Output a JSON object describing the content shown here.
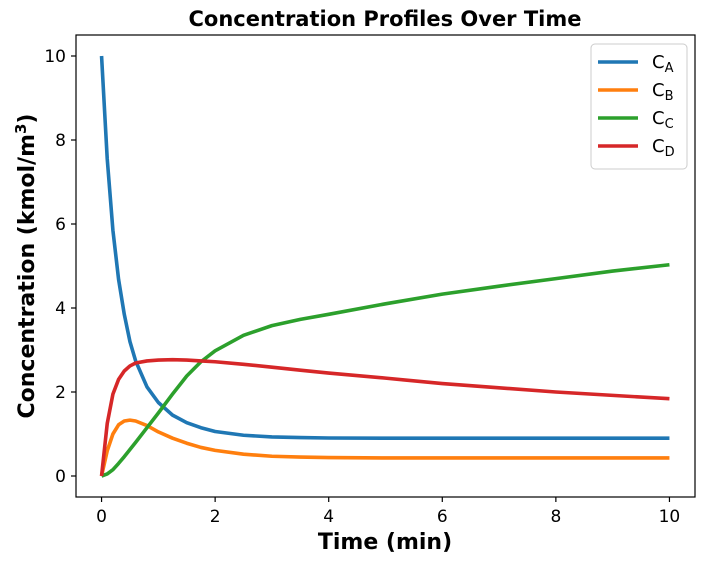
{
  "chart_data": {
    "type": "line",
    "title": "Concentration Profiles Over Time",
    "xlabel": "Time (min)",
    "ylabel": "Concentration (kmol/m3)",
    "ylabel_main": "Concentration (kmol/m",
    "ylabel_sup": "3",
    "ylabel_end": ")",
    "xlim": [
      -0.45,
      10.45
    ],
    "ylim": [
      -0.5,
      10.5
    ],
    "xticks": [
      0,
      2,
      4,
      6,
      8,
      10
    ],
    "yticks": [
      0,
      2,
      4,
      6,
      8,
      10
    ],
    "grid": false,
    "legend_position": "top-right",
    "series": [
      {
        "name": "CA",
        "name_main": "C",
        "name_sub": "A",
        "color": "#1f77b4",
        "x": [
          0,
          0.1,
          0.2,
          0.3,
          0.4,
          0.5,
          0.6,
          0.8,
          1.0,
          1.25,
          1.5,
          1.75,
          2.0,
          2.5,
          3.0,
          3.5,
          4.0,
          5.0,
          6.0,
          7.0,
          8.0,
          9.0,
          10.0
        ],
        "y": [
          10.0,
          7.55,
          5.85,
          4.68,
          3.85,
          3.2,
          2.74,
          2.12,
          1.75,
          1.45,
          1.27,
          1.15,
          1.06,
          0.97,
          0.93,
          0.915,
          0.905,
          0.9,
          0.9,
          0.9,
          0.9,
          0.9,
          0.9
        ]
      },
      {
        "name": "CB",
        "name_main": "C",
        "name_sub": "B",
        "color": "#ff7f0e",
        "x": [
          0,
          0.1,
          0.2,
          0.3,
          0.4,
          0.5,
          0.6,
          0.8,
          1.0,
          1.25,
          1.5,
          1.75,
          2.0,
          2.5,
          3.0,
          3.5,
          4.0,
          5.0,
          6.0,
          7.0,
          8.0,
          9.0,
          10.0
        ],
        "y": [
          0,
          0.6,
          1.0,
          1.22,
          1.31,
          1.33,
          1.31,
          1.2,
          1.05,
          0.9,
          0.78,
          0.68,
          0.61,
          0.52,
          0.47,
          0.45,
          0.44,
          0.43,
          0.43,
          0.43,
          0.43,
          0.43,
          0.43
        ]
      },
      {
        "name": "CC",
        "name_main": "C",
        "name_sub": "C",
        "color": "#2ca02c",
        "x": [
          0,
          0.1,
          0.2,
          0.3,
          0.4,
          0.5,
          0.6,
          0.8,
          1.0,
          1.25,
          1.5,
          1.75,
          2.0,
          2.5,
          3.0,
          3.5,
          4.0,
          5.0,
          6.0,
          7.0,
          8.0,
          9.0,
          10.0
        ],
        "y": [
          0,
          0.05,
          0.15,
          0.3,
          0.46,
          0.63,
          0.8,
          1.15,
          1.5,
          1.95,
          2.38,
          2.72,
          2.98,
          3.35,
          3.58,
          3.73,
          3.85,
          4.1,
          4.33,
          4.52,
          4.7,
          4.88,
          5.03
        ]
      },
      {
        "name": "CD",
        "name_main": "C",
        "name_sub": "D",
        "color": "#d62728",
        "x": [
          0,
          0.1,
          0.2,
          0.3,
          0.4,
          0.5,
          0.6,
          0.8,
          1.0,
          1.25,
          1.5,
          1.75,
          2.0,
          2.5,
          3.0,
          3.5,
          4.0,
          5.0,
          6.0,
          7.0,
          8.0,
          9.0,
          10.0
        ],
        "y": [
          0,
          1.25,
          1.95,
          2.3,
          2.5,
          2.62,
          2.69,
          2.74,
          2.76,
          2.77,
          2.76,
          2.74,
          2.72,
          2.66,
          2.59,
          2.52,
          2.45,
          2.33,
          2.2,
          2.1,
          2.0,
          1.92,
          1.84
        ]
      }
    ]
  }
}
